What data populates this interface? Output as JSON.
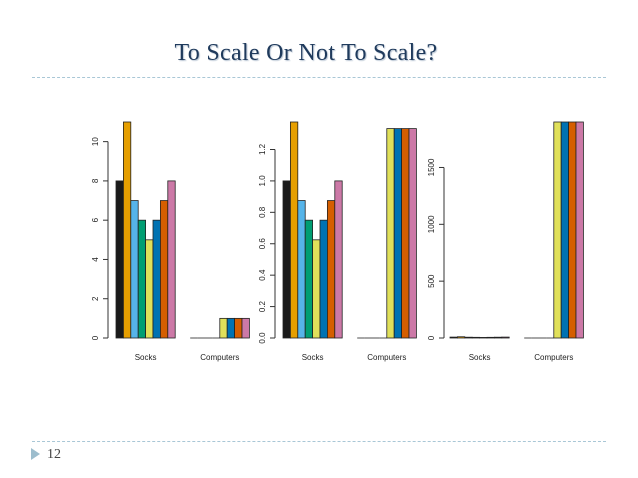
{
  "slide": {
    "title": "To Scale Or Not To Scale?",
    "number": "12"
  },
  "colors": {
    "title": "#1f3a5c",
    "rule": "#a9c7d6",
    "marker": "#9dbdcd"
  },
  "chart_data": [
    {
      "type": "bar",
      "categories": [
        "Socks",
        "Computers"
      ],
      "series": [
        {
          "color": "#1a1a1a",
          "values": [
            8,
            0
          ]
        },
        {
          "color": "#e69f00",
          "values": [
            11,
            0
          ]
        },
        {
          "color": "#56b4e9",
          "values": [
            7,
            0
          ]
        },
        {
          "color": "#009e73",
          "values": [
            6,
            0
          ]
        },
        {
          "color": "#e0e05a",
          "values": [
            5,
            1
          ]
        },
        {
          "color": "#0072b2",
          "values": [
            6,
            1
          ]
        },
        {
          "color": "#d55e00",
          "values": [
            7,
            1
          ]
        },
        {
          "color": "#cc79a7",
          "values": [
            8,
            1
          ]
        }
      ],
      "yticks": [
        "0",
        "2",
        "4",
        "6",
        "8",
        "10"
      ],
      "ylim": [
        0,
        11
      ],
      "xlabel": "",
      "ylabel": "",
      "title": ""
    },
    {
      "type": "bar",
      "categories": [
        "Socks",
        "Computers"
      ],
      "series": [
        {
          "color": "#1a1a1a",
          "values": [
            1.0,
            0
          ]
        },
        {
          "color": "#e69f00",
          "values": [
            1.375,
            0
          ]
        },
        {
          "color": "#56b4e9",
          "values": [
            0.875,
            0
          ]
        },
        {
          "color": "#009e73",
          "values": [
            0.75,
            0
          ]
        },
        {
          "color": "#e0e05a",
          "values": [
            0.625,
            1.333
          ]
        },
        {
          "color": "#0072b2",
          "values": [
            0.75,
            1.333
          ]
        },
        {
          "color": "#d55e00",
          "values": [
            0.875,
            1.333
          ]
        },
        {
          "color": "#cc79a7",
          "values": [
            1.0,
            1.333
          ]
        }
      ],
      "yticks": [
        "0.0",
        "0.2",
        "0.4",
        "0.6",
        "0.8",
        "1.0",
        "1.2"
      ],
      "ylim": [
        0,
        1.375
      ],
      "xlabel": "",
      "ylabel": "",
      "title": ""
    },
    {
      "type": "bar",
      "categories": [
        "Socks",
        "Computers"
      ],
      "series": [
        {
          "color": "#1a1a1a",
          "values": [
            8,
            0
          ]
        },
        {
          "color": "#e69f00",
          "values": [
            11,
            0
          ]
        },
        {
          "color": "#56b4e9",
          "values": [
            7,
            0
          ]
        },
        {
          "color": "#009e73",
          "values": [
            6,
            0
          ]
        },
        {
          "color": "#e0e05a",
          "values": [
            5,
            1900
          ]
        },
        {
          "color": "#0072b2",
          "values": [
            6,
            1900
          ]
        },
        {
          "color": "#d55e00",
          "values": [
            7,
            1900
          ]
        },
        {
          "color": "#cc79a7",
          "values": [
            8,
            1900
          ]
        }
      ],
      "yticks": [
        "0",
        "500",
        "1000",
        "1500"
      ],
      "ylim": [
        0,
        1900
      ],
      "xlabel": "",
      "ylabel": "",
      "title": ""
    }
  ]
}
